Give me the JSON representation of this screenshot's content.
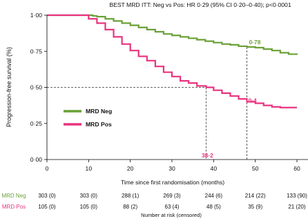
{
  "chart_data": {
    "type": "line",
    "title": "BEST MRD ITT: Neg vs Pos: HR 0·29 (95% CI 0·20–0·40); p<0·0001",
    "xlabel": "Time since first randomisation (months)",
    "ylabel": "Progression-free survival (%)",
    "xlim": [
      0,
      60
    ],
    "ylim": [
      0,
      1
    ],
    "x_ticks": [
      "0",
      "10",
      "20",
      "30",
      "40",
      "50",
      "60"
    ],
    "y_ticks": [
      "0·00",
      "0·25",
      "0·50",
      "0·75",
      "1·00"
    ],
    "grid": false,
    "legend": "center-left",
    "series": [
      {
        "name": "MRD Neg",
        "color": "#6aa037",
        "points": [
          [
            0,
            1.0
          ],
          [
            9,
            1.0
          ],
          [
            11,
            0.995
          ],
          [
            12,
            0.99
          ],
          [
            14,
            0.975
          ],
          [
            16,
            0.96
          ],
          [
            18,
            0.945
          ],
          [
            20,
            0.93
          ],
          [
            22,
            0.915
          ],
          [
            24,
            0.9
          ],
          [
            26,
            0.885
          ],
          [
            28,
            0.87
          ],
          [
            30,
            0.86
          ],
          [
            32,
            0.85
          ],
          [
            34,
            0.84
          ],
          [
            36,
            0.83
          ],
          [
            38,
            0.82
          ],
          [
            40,
            0.81
          ],
          [
            42,
            0.8
          ],
          [
            44,
            0.795
          ],
          [
            46,
            0.785
          ],
          [
            48,
            0.78
          ],
          [
            50,
            0.775
          ],
          [
            52,
            0.765
          ],
          [
            54,
            0.755
          ],
          [
            56,
            0.74
          ],
          [
            58,
            0.73
          ],
          [
            60,
            0.725
          ]
        ]
      },
      {
        "name": "MRD Pos",
        "color": "#e8337f",
        "points": [
          [
            0,
            1.0
          ],
          [
            8,
            1.0
          ],
          [
            10,
            0.975
          ],
          [
            12,
            0.945
          ],
          [
            14,
            0.9
          ],
          [
            16,
            0.85
          ],
          [
            18,
            0.8
          ],
          [
            20,
            0.755
          ],
          [
            22,
            0.715
          ],
          [
            24,
            0.685
          ],
          [
            26,
            0.645
          ],
          [
            28,
            0.605
          ],
          [
            30,
            0.575
          ],
          [
            32,
            0.545
          ],
          [
            34,
            0.53
          ],
          [
            36,
            0.51
          ],
          [
            38.2,
            0.5
          ],
          [
            40,
            0.48
          ],
          [
            42,
            0.46
          ],
          [
            44,
            0.44
          ],
          [
            46,
            0.42
          ],
          [
            48,
            0.4
          ],
          [
            50,
            0.39
          ],
          [
            52,
            0.375
          ],
          [
            54,
            0.365
          ],
          [
            56,
            0.36
          ],
          [
            60,
            0.36
          ]
        ]
      }
    ],
    "annotations": [
      {
        "text": "0·78",
        "series": "MRD Neg",
        "x": 48,
        "y": 0.78,
        "color": "#6aa037"
      },
      {
        "text": "0·4",
        "series": "MRD Pos",
        "x": 48,
        "y": 0.4,
        "color": "#e8337f"
      },
      {
        "text": "38·2",
        "series": "MRD Pos",
        "x": 38.2,
        "y": 0.5,
        "color": "#e8337f"
      }
    ],
    "risk_table": {
      "title": "Number at risk (censored)",
      "rows": [
        {
          "label": "MRD Neg",
          "color": "#6aa037",
          "values": [
            "303 (0)",
            "303 (0)",
            "288 (1)",
            "269 (3)",
            "244 (6)",
            "214 (22)",
            "133 (90)"
          ]
        },
        {
          "label": "MRD Pos",
          "color": "#e8337f",
          "values": [
            "105 (0)",
            "105 (0)",
            "88 (2)",
            "63 (4)",
            "48 (5)",
            "35 (9)",
            "21 (20)"
          ]
        }
      ]
    }
  }
}
